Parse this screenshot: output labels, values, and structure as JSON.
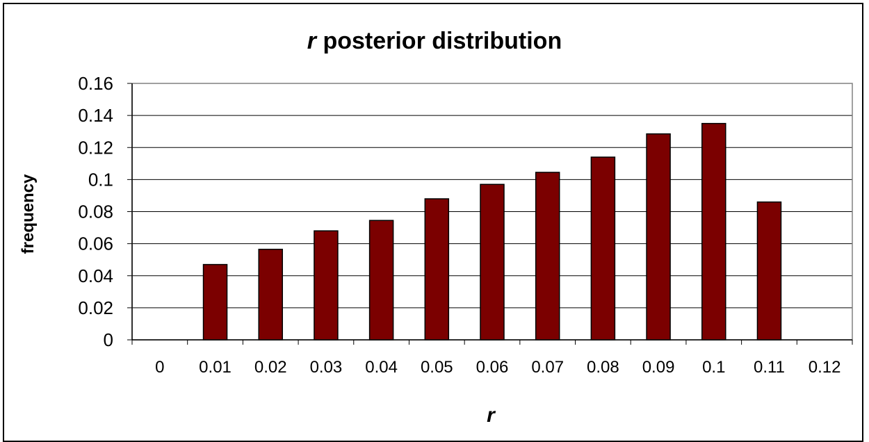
{
  "chart_data": {
    "type": "bar",
    "title_var": "r",
    "title_rest": " posterior distribution",
    "xlabel": "r",
    "ylabel": "frequency",
    "categories": [
      "0",
      "0.01",
      "0.02",
      "0.03",
      "0.04",
      "0.05",
      "0.06",
      "0.07",
      "0.08",
      "0.09",
      "0.1",
      "0.11",
      "0.12"
    ],
    "values": [
      0,
      0.047,
      0.0565,
      0.068,
      0.0745,
      0.088,
      0.097,
      0.1045,
      0.114,
      0.1285,
      0.135,
      0.086,
      0
    ],
    "ylim": [
      0,
      0.16
    ],
    "yticks": [
      "0",
      "0.02",
      "0.04",
      "0.06",
      "0.08",
      "0.1",
      "0.12",
      "0.14",
      "0.16"
    ],
    "grid": true,
    "bar_color": "#7b0000"
  }
}
